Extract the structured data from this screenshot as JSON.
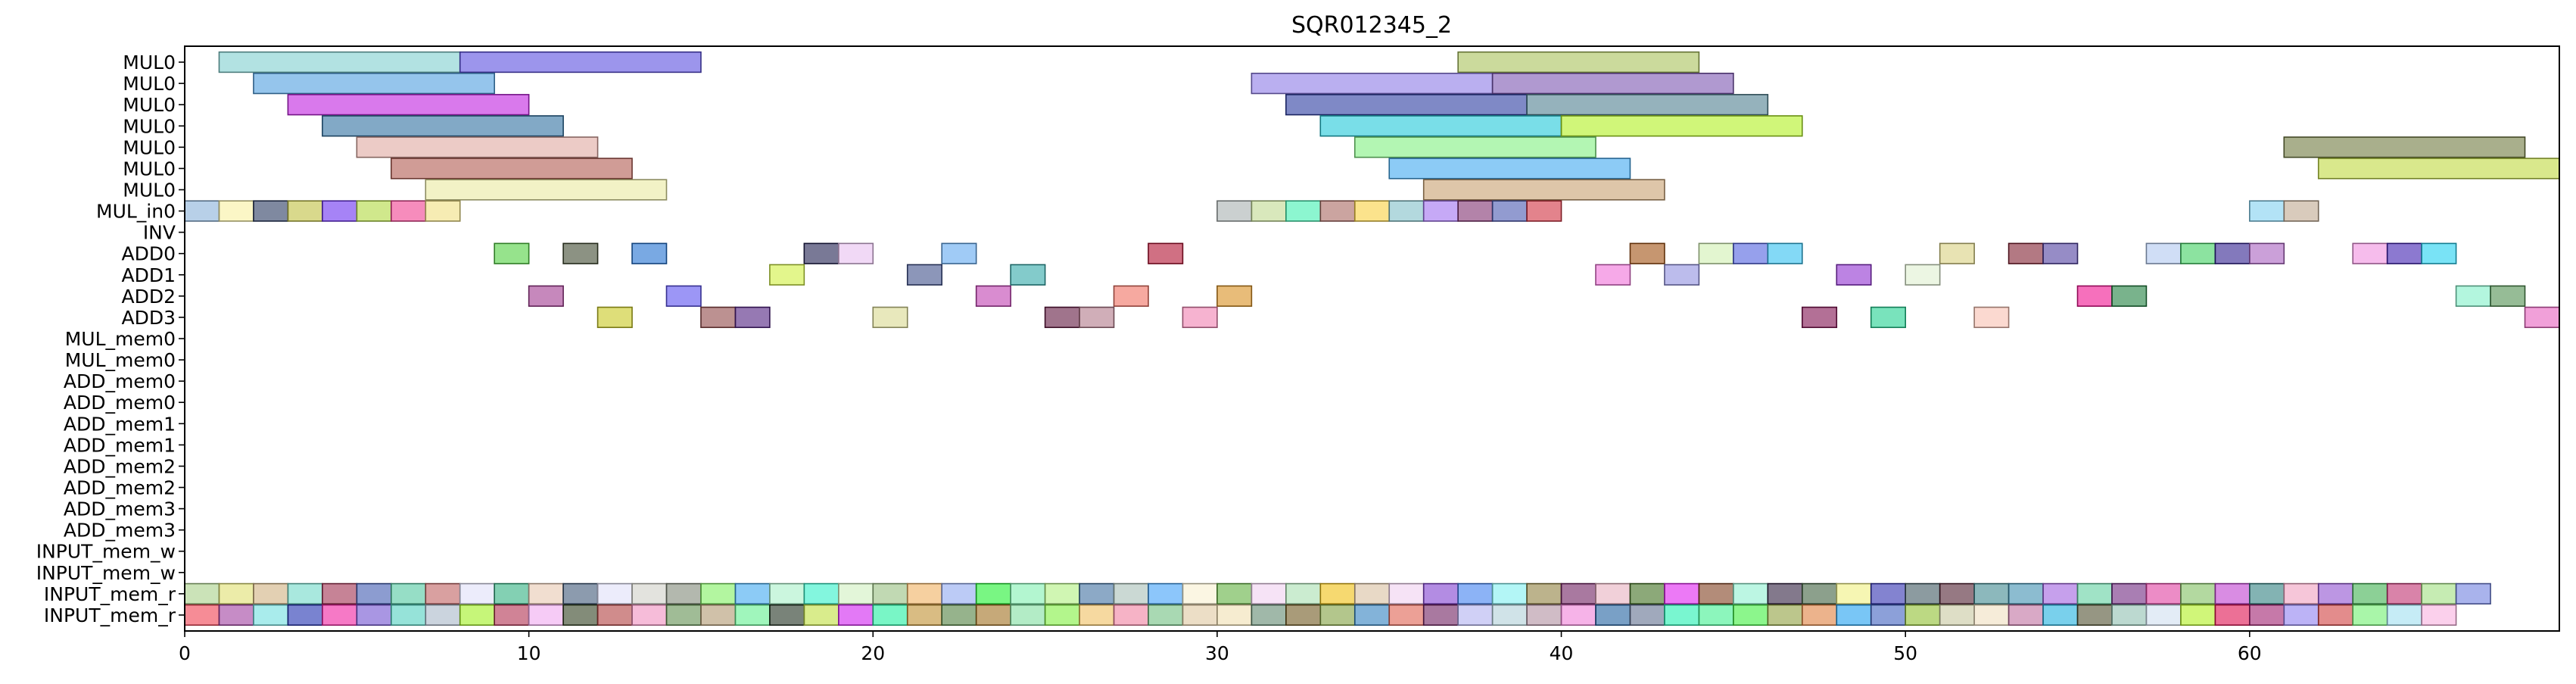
{
  "chart_data": {
    "type": "gantt",
    "title": "SQR012345_2",
    "xlabel": "",
    "ylabel": "",
    "xlim": [
      0,
      69
    ],
    "x_ticks": [
      0,
      10,
      20,
      30,
      40,
      50,
      60
    ],
    "grid": false,
    "rows": [
      "MUL0",
      "MUL0",
      "MUL0",
      "MUL0",
      "MUL0",
      "MUL0",
      "MUL0",
      "MUL_in0",
      "INV",
      "ADD0",
      "ADD1",
      "ADD2",
      "ADD3",
      "MUL_mem0",
      "MUL_mem0",
      "ADD_mem0",
      "ADD_mem0",
      "ADD_mem1",
      "ADD_mem1",
      "ADD_mem2",
      "ADD_mem2",
      "ADD_mem3",
      "ADD_mem3",
      "INPUT_mem_w",
      "INPUT_mem_w",
      "INPUT_mem_r",
      "INPUT_mem_r"
    ],
    "tasks": [
      {
        "row": 0,
        "start": 1,
        "end": 8,
        "color": "#7fcfcf"
      },
      {
        "row": 0,
        "start": 8,
        "end": 15,
        "color": "#5a4fe0"
      },
      {
        "row": 0,
        "start": 37,
        "end": 44,
        "color": "#a8c25a"
      },
      {
        "row": 1,
        "start": 2,
        "end": 9,
        "color": "#4f9fe0"
      },
      {
        "row": 1,
        "start": 31,
        "end": 38,
        "color": "#8c7ae6"
      },
      {
        "row": 1,
        "start": 38,
        "end": 45,
        "color": "#7b55b0"
      },
      {
        "row": 2,
        "start": 3,
        "end": 10,
        "color": "#c020e0"
      },
      {
        "row": 2,
        "start": 32,
        "end": 39,
        "color": "#2a3aa0"
      },
      {
        "row": 2,
        "start": 39,
        "end": 46,
        "color": "#4f7f8f"
      },
      {
        "row": 3,
        "start": 4,
        "end": 11,
        "color": "#2f6fa0"
      },
      {
        "row": 3,
        "start": 33,
        "end": 40,
        "color": "#20c8d8"
      },
      {
        "row": 3,
        "start": 40,
        "end": 47,
        "color": "#b0f020"
      },
      {
        "row": 4,
        "start": 5,
        "end": 12,
        "color": "#e0a8a0"
      },
      {
        "row": 4,
        "start": 34,
        "end": 41,
        "color": "#80f080"
      },
      {
        "row": 4,
        "start": 61,
        "end": 68,
        "color": "#707a40"
      },
      {
        "row": 5,
        "start": 6,
        "end": 13,
        "color": "#b05a50"
      },
      {
        "row": 5,
        "start": 35,
        "end": 42,
        "color": "#40a8f0"
      },
      {
        "row": 5,
        "start": 62,
        "end": 69,
        "color": "#c0d840"
      },
      {
        "row": 6,
        "start": 7,
        "end": 14,
        "color": "#eaeaa0"
      },
      {
        "row": 6,
        "start": 36,
        "end": 43,
        "color": "#c8a070"
      },
      {
        "row": 7,
        "start": 0,
        "end": 1,
        "color": "#88b0d8"
      },
      {
        "row": 7,
        "start": 1,
        "end": 2,
        "color": "#f8f0a0"
      },
      {
        "row": 7,
        "start": 2,
        "end": 3,
        "color": "#2a3a60"
      },
      {
        "row": 7,
        "start": 3,
        "end": 4,
        "color": "#c0c040"
      },
      {
        "row": 7,
        "start": 4,
        "end": 5,
        "color": "#6a30f0"
      },
      {
        "row": 7,
        "start": 5,
        "end": 6,
        "color": "#b0d840"
      },
      {
        "row": 7,
        "start": 6,
        "end": 7,
        "color": "#f04090"
      },
      {
        "row": 7,
        "start": 7,
        "end": 8,
        "color": "#f0e080"
      },
      {
        "row": 7,
        "start": 30,
        "end": 31,
        "color": "#a8b0b0"
      },
      {
        "row": 7,
        "start": 31,
        "end": 32,
        "color": "#c0d890"
      },
      {
        "row": 7,
        "start": 32,
        "end": 33,
        "color": "#40f0b0"
      },
      {
        "row": 7,
        "start": 33,
        "end": 34,
        "color": "#a86860"
      },
      {
        "row": 7,
        "start": 34,
        "end": 35,
        "color": "#f8d040"
      },
      {
        "row": 7,
        "start": 35,
        "end": 36,
        "color": "#80c0c8"
      },
      {
        "row": 7,
        "start": 36,
        "end": 37,
        "color": "#a070f0"
      },
      {
        "row": 7,
        "start": 37,
        "end": 38,
        "color": "#803070"
      },
      {
        "row": 7,
        "start": 38,
        "end": 39,
        "color": "#4a58b0"
      },
      {
        "row": 7,
        "start": 39,
        "end": 40,
        "color": "#d03040"
      },
      {
        "row": 7,
        "start": 60,
        "end": 61,
        "color": "#80d0f0"
      },
      {
        "row": 7,
        "start": 61,
        "end": 62,
        "color": "#c0a890"
      },
      {
        "row": 9,
        "start": 9,
        "end": 10,
        "color": "#50d040"
      },
      {
        "row": 9,
        "start": 11,
        "end": 12,
        "color": "#404a30"
      },
      {
        "row": 9,
        "start": 13,
        "end": 14,
        "color": "#2070d0"
      },
      {
        "row": 9,
        "start": 18,
        "end": 19,
        "color": "#202050"
      },
      {
        "row": 9,
        "start": 19,
        "end": 20,
        "color": "#e8c0f0"
      },
      {
        "row": 9,
        "start": 22,
        "end": 23,
        "color": "#60a8f0"
      },
      {
        "row": 9,
        "start": 28,
        "end": 29,
        "color": "#b01030"
      },
      {
        "row": 9,
        "start": 42,
        "end": 43,
        "color": "#a05010"
      },
      {
        "row": 9,
        "start": 44,
        "end": 45,
        "color": "#d0f0b0"
      },
      {
        "row": 9,
        "start": 45,
        "end": 46,
        "color": "#5060e0"
      },
      {
        "row": 9,
        "start": 46,
        "end": 47,
        "color": "#30c0f0"
      },
      {
        "row": 9,
        "start": 51,
        "end": 52,
        "color": "#d8d080"
      },
      {
        "row": 9,
        "start": 53,
        "end": 54,
        "color": "#802030"
      },
      {
        "row": 9,
        "start": 54,
        "end": 55,
        "color": "#5040a0"
      },
      {
        "row": 9,
        "start": 57,
        "end": 58,
        "color": "#b0c8f0"
      },
      {
        "row": 9,
        "start": 58,
        "end": 59,
        "color": "#40d060"
      },
      {
        "row": 9,
        "start": 59,
        "end": 60,
        "color": "#302090"
      },
      {
        "row": 9,
        "start": 60,
        "end": 61,
        "color": "#a860c0"
      },
      {
        "row": 9,
        "start": 63,
        "end": 64,
        "color": "#f090e0"
      },
      {
        "row": 9,
        "start": 64,
        "end": 65,
        "color": "#4020b0"
      },
      {
        "row": 9,
        "start": 65,
        "end": 66,
        "color": "#20d0f0"
      },
      {
        "row": 10,
        "start": 17,
        "end": 18,
        "color": "#d0f040"
      },
      {
        "row": 10,
        "start": 21,
        "end": 22,
        "color": "#40508a"
      },
      {
        "row": 10,
        "start": 24,
        "end": 25,
        "color": "#30a8a8"
      },
      {
        "row": 10,
        "start": 41,
        "end": 42,
        "color": "#f070d8"
      },
      {
        "row": 10,
        "start": 43,
        "end": 44,
        "color": "#9090e0"
      },
      {
        "row": 10,
        "start": 48,
        "end": 49,
        "color": "#9030d0"
      },
      {
        "row": 10,
        "start": 50,
        "end": 51,
        "color": "#e0f0d0"
      },
      {
        "row": 11,
        "start": 10,
        "end": 11,
        "color": "#a03890"
      },
      {
        "row": 11,
        "start": 14,
        "end": 15,
        "color": "#5a50f0"
      },
      {
        "row": 11,
        "start": 23,
        "end": 24,
        "color": "#c040b0"
      },
      {
        "row": 11,
        "start": 27,
        "end": 28,
        "color": "#f07060"
      },
      {
        "row": 11,
        "start": 30,
        "end": 31,
        "color": "#d89020"
      },
      {
        "row": 11,
        "start": 55,
        "end": 56,
        "color": "#f01090"
      },
      {
        "row": 11,
        "start": 56,
        "end": 57,
        "color": "#208040"
      },
      {
        "row": 11,
        "start": 66,
        "end": 67,
        "color": "#80f0c8"
      },
      {
        "row": 11,
        "start": 67,
        "end": 68,
        "color": "#509050"
      },
      {
        "row": 12,
        "start": 12,
        "end": 13,
        "color": "#c8c820"
      },
      {
        "row": 12,
        "start": 15,
        "end": 16,
        "color": "#904848"
      },
      {
        "row": 12,
        "start": 16,
        "end": 17,
        "color": "#502080"
      },
      {
        "row": 12,
        "start": 20,
        "end": 21,
        "color": "#d8d890"
      },
      {
        "row": 12,
        "start": 25,
        "end": 26,
        "color": "#601840"
      },
      {
        "row": 12,
        "start": 26,
        "end": 27,
        "color": "#b07888"
      },
      {
        "row": 12,
        "start": 29,
        "end": 30,
        "color": "#f080b0"
      },
      {
        "row": 12,
        "start": 47,
        "end": 48,
        "color": "#801050"
      },
      {
        "row": 12,
        "start": 49,
        "end": 50,
        "color": "#20d090"
      },
      {
        "row": 12,
        "start": 52,
        "end": 53,
        "color": "#f8c0b0"
      },
      {
        "row": 12,
        "start": 68,
        "end": 69,
        "color": "#e860c0"
      }
    ],
    "row25_colors": [
      "#a8d088",
      "#e0e070",
      "#d0b080",
      "#70d8c8",
      "#a03050",
      "#405ab0",
      "#50c8a0",
      "#c06060",
      "#e0e0f8",
      "#30b080",
      "#e8c8b0",
      "#405878",
      "#e0e0f8",
      "#d0d0c8",
      "#808878",
      "#80f060",
      "#40a8f0",
      "#a8f0c8",
      "#30f0c8",
      "#d0f0c0",
      "#98c080",
      "#f0b060",
      "#90a8f0",
      "#20f030",
      "#80f0b0",
      "#b0f080",
      "#4070a0",
      "#a8c0b8",
      "#40a0f8",
      "#f8f0d0",
      "#60b040",
      "#f0d0f0",
      "#a8e0b0",
      "#f0c010",
      "#d8c0a0",
      "#f0d0f0",
      "#8040d0",
      "#4080f0",
      "#80f0f0",
      "#908040",
      "#702060",
      "#e8b0c0",
      "#407020",
      "#e020f0",
      "#804020",
      "#90f0d0",
      "#302040",
      "#406040",
      "#f0f080",
      "#3030b0",
      "#405860",
      "#502030",
      "#408890",
      "#4090b0",
      "#a060e0",
      "#60d0a0",
      "#702880",
      "#e040a0",
      "#80c060",
      "#c040d0",
      "#308080",
      "#f0a0c0",
      "#9050d0",
      "#40b050",
      "#c03070",
      "#a0e080",
      "#7080e0"
    ],
    "row26_colors": [
      "#f04050",
      "#a040a0",
      "#70e0e0",
      "#2030b0",
      "#f020a0",
      "#7050d0",
      "#50d0c0",
      "#a8b8c8",
      "#a0f020",
      "#b03050",
      "#f0a8f0",
      "#304020",
      "#b04040",
      "#f090c0",
      "#609050",
      "#b09870",
      "#60f090",
      "#203020",
      "#c0e040",
      "#d020f0",
      "#20f0a0",
      "#c09030",
      "#508040",
      "#a07020",
      "#80e0a0",
      "#80f040",
      "#f0c060",
      "#f080a0",
      "#70c080",
      "#e0c8a0",
      "#f0e0b0",
      "#608870",
      "#705820",
      "#80a040",
      "#3080c0",
      "#e06050",
      "#702060",
      "#b0b0f0",
      "#b0d0d8",
      "#b090a0",
      "#f080d8",
      "#2060a0",
      "#607090",
      "#20f0b0",
      "#40f090",
      "#40f040",
      "#90a040",
      "#e08040",
      "#20a0f0",
      "#4060c0",
      "#90c030",
      "#c8c8a0",
      "#f0e0c0",
      "#c070a0",
      "#20b0e0",
      "#505030",
      "#90c0b0",
      "#d0e0f0",
      "#b0f020",
      "#e01050",
      "#a02070",
      "#9080f0",
      "#d04040",
      "#70f070",
      "#a0e0f0",
      "#f8b0e0"
    ]
  }
}
